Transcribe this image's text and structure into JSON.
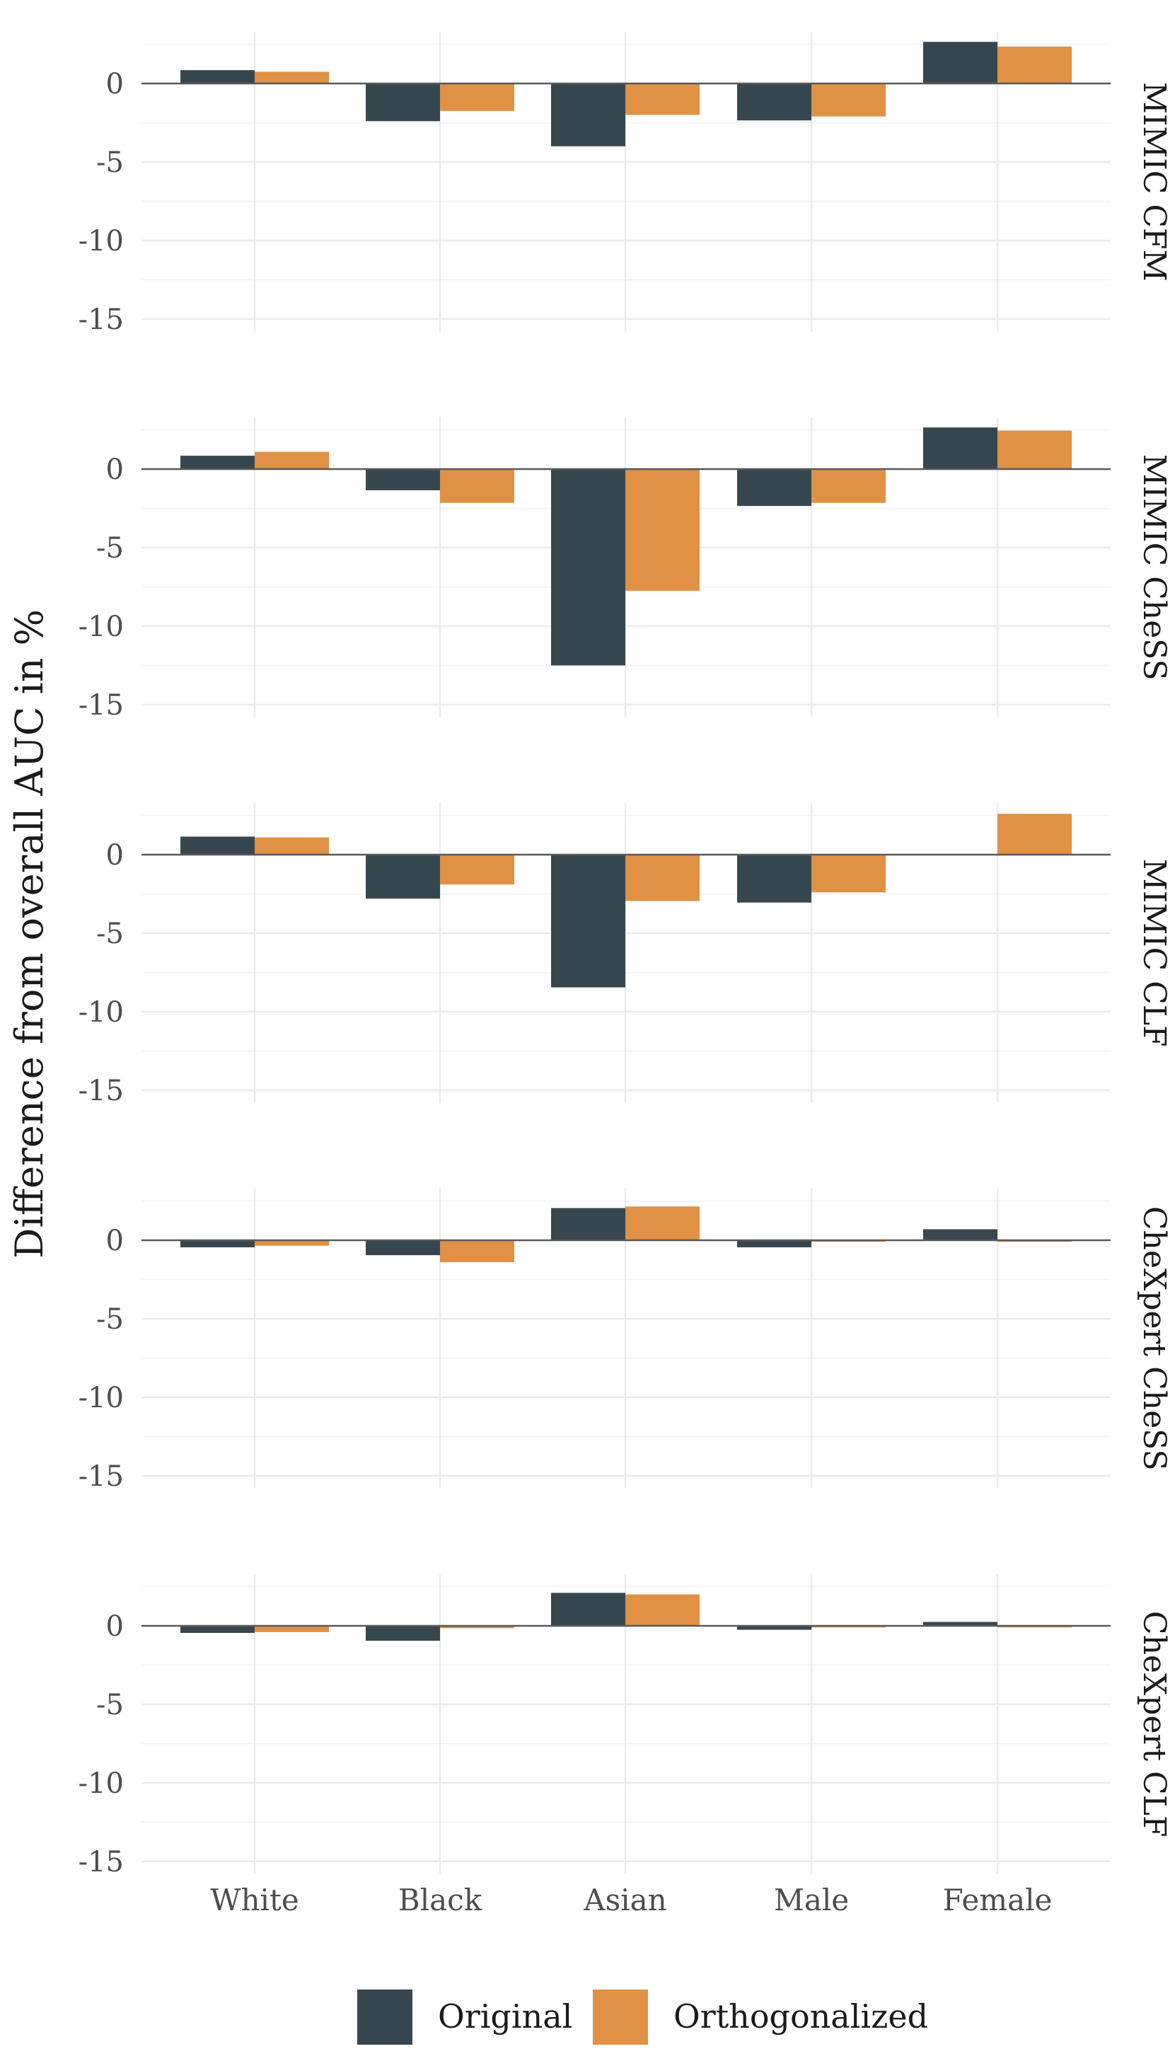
{
  "chart_data": {
    "type": "bar",
    "title": "",
    "xlabel": "",
    "ylabel": "Difference from overall AUC in %",
    "categories": [
      "White",
      "Black",
      "Asian",
      "Male",
      "Female"
    ],
    "yticks": [
      "0",
      "-5",
      "-10",
      "-15"
    ],
    "ytick_values": [
      0,
      -5,
      -10,
      -15
    ],
    "ylim": [
      -15.8,
      3.3
    ],
    "legend": {
      "position": "bottom",
      "entries": [
        {
          "name": "Original",
          "color": "#37474f"
        },
        {
          "name": "Orthogonalized",
          "color": "#e09146"
        }
      ]
    },
    "panels": [
      {
        "label": "MIMIC CFM",
        "series": [
          {
            "name": "Original",
            "values": [
              0.85,
              -2.4,
              -4.0,
              -2.35,
              2.65
            ]
          },
          {
            "name": "Orthogonalized",
            "values": [
              0.75,
              -1.75,
              -2.0,
              -2.1,
              2.35
            ]
          }
        ]
      },
      {
        "label": "MIMIC CheSS",
        "series": [
          {
            "name": "Original",
            "values": [
              0.85,
              -1.35,
              -12.5,
              -2.35,
              2.65
            ]
          },
          {
            "name": "Orthogonalized",
            "values": [
              1.1,
              -2.15,
              -7.75,
              -2.15,
              2.45
            ]
          }
        ]
      },
      {
        "label": "MIMIC CLF",
        "series": [
          {
            "name": "Original",
            "values": [
              1.15,
              -2.8,
              -8.45,
              -3.05,
              0.0
            ]
          },
          {
            "name": "Orthogonalized",
            "values": [
              1.1,
              -1.9,
              -2.95,
              -2.4,
              2.6
            ]
          }
        ]
      },
      {
        "label": "CheXpert CheSS",
        "series": [
          {
            "name": "Original",
            "values": [
              -0.45,
              -0.95,
              2.05,
              -0.45,
              0.7
            ]
          },
          {
            "name": "Orthogonalized",
            "values": [
              -0.35,
              -1.4,
              2.15,
              -0.1,
              -0.1
            ]
          }
        ]
      },
      {
        "label": "CheXpert CLF",
        "series": [
          {
            "name": "Original",
            "values": [
              -0.45,
              -0.95,
              2.1,
              -0.25,
              0.25
            ]
          },
          {
            "name": "Orthogonalized",
            "values": [
              -0.4,
              -0.15,
              2.0,
              -0.1,
              -0.1
            ]
          }
        ]
      }
    ]
  }
}
